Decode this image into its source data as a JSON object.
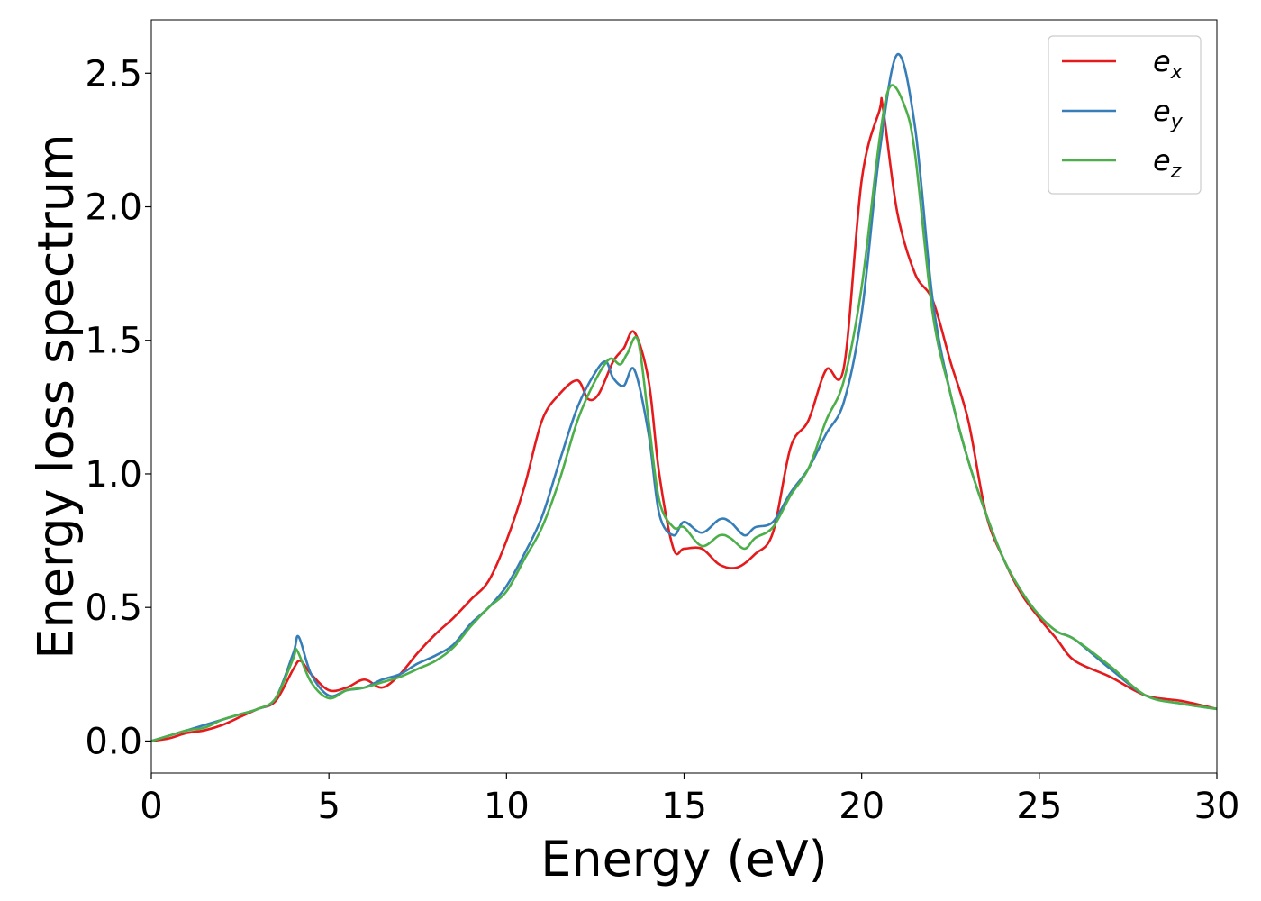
{
  "chart_data": {
    "type": "line",
    "xlabel": "Energy (eV)",
    "ylabel": "Energy loss spectrum",
    "xlim": [
      0,
      30
    ],
    "ylim": [
      -0.12,
      2.7
    ],
    "xticks": [
      0,
      5,
      10,
      15,
      20,
      25,
      30
    ],
    "xtick_labels": [
      "0",
      "5",
      "10",
      "15",
      "20",
      "25",
      "30"
    ],
    "yticks": [
      0.0,
      0.5,
      1.0,
      1.5,
      2.0,
      2.5
    ],
    "ytick_labels": [
      "0.0",
      "0.5",
      "1.0",
      "1.5",
      "2.0",
      "2.5"
    ],
    "grid": false,
    "legend_position": "top-right",
    "series": [
      {
        "name": "e_x",
        "label_base": "e",
        "label_sub": "x",
        "color": "#e41a1c",
        "x": [
          0,
          0.5,
          1,
          1.5,
          2,
          2.5,
          3,
          3.5,
          4,
          4.2,
          4.5,
          5,
          5.5,
          6,
          6.5,
          7,
          7.5,
          8,
          8.5,
          9,
          9.5,
          10,
          10.5,
          11,
          11.5,
          12,
          12.3,
          12.6,
          13,
          13.3,
          13.6,
          14,
          14.3,
          14.7,
          15,
          15.5,
          16,
          16.5,
          17,
          17.5,
          18,
          18.5,
          19,
          19.5,
          20,
          20.5,
          20.6,
          21,
          21.5,
          22,
          22.5,
          23,
          23.5,
          24,
          24.5,
          25,
          25.5,
          26,
          27,
          28,
          29,
          30
        ],
        "y": [
          0.0,
          0.01,
          0.03,
          0.04,
          0.06,
          0.09,
          0.12,
          0.15,
          0.27,
          0.3,
          0.25,
          0.19,
          0.2,
          0.23,
          0.2,
          0.25,
          0.33,
          0.4,
          0.46,
          0.53,
          0.6,
          0.75,
          0.95,
          1.2,
          1.3,
          1.35,
          1.28,
          1.3,
          1.42,
          1.47,
          1.53,
          1.35,
          1.0,
          0.72,
          0.72,
          0.72,
          0.66,
          0.65,
          0.7,
          0.78,
          1.1,
          1.2,
          1.39,
          1.4,
          2.1,
          2.36,
          2.37,
          1.98,
          1.75,
          1.65,
          1.42,
          1.2,
          0.85,
          0.68,
          0.55,
          0.46,
          0.38,
          0.3,
          0.24,
          0.17,
          0.15,
          0.12
        ]
      },
      {
        "name": "e_y",
        "label_base": "e",
        "label_sub": "y",
        "color": "#377eb8",
        "x": [
          0,
          0.5,
          1,
          1.5,
          2,
          2.5,
          3,
          3.5,
          4,
          4.15,
          4.5,
          5,
          5.5,
          6,
          6.5,
          7,
          7.5,
          8,
          8.5,
          9,
          9.5,
          10,
          10.5,
          11,
          11.5,
          12,
          12.5,
          12.8,
          13,
          13.3,
          13.6,
          14,
          14.3,
          14.7,
          15,
          15.5,
          16,
          16.3,
          16.7,
          17,
          17.5,
          18,
          18.5,
          19,
          19.5,
          20,
          20.5,
          21,
          21.5,
          22,
          22.5,
          23,
          23.5,
          24,
          24.5,
          25,
          25.5,
          26,
          27,
          28,
          29,
          30
        ],
        "y": [
          0.0,
          0.02,
          0.04,
          0.06,
          0.08,
          0.1,
          0.12,
          0.16,
          0.33,
          0.39,
          0.25,
          0.17,
          0.19,
          0.2,
          0.23,
          0.25,
          0.29,
          0.32,
          0.36,
          0.44,
          0.5,
          0.58,
          0.7,
          0.84,
          1.05,
          1.25,
          1.38,
          1.42,
          1.36,
          1.33,
          1.39,
          1.15,
          0.85,
          0.77,
          0.82,
          0.78,
          0.83,
          0.82,
          0.77,
          0.8,
          0.82,
          0.93,
          1.02,
          1.15,
          1.27,
          1.6,
          2.2,
          2.57,
          2.3,
          1.65,
          1.3,
          1.05,
          0.85,
          0.68,
          0.56,
          0.47,
          0.41,
          0.38,
          0.27,
          0.17,
          0.14,
          0.12
        ]
      },
      {
        "name": "e_z",
        "label_base": "e",
        "label_sub": "z",
        "color": "#4daf4a",
        "x": [
          0,
          0.5,
          1,
          1.5,
          2,
          2.5,
          3,
          3.5,
          4,
          4.1,
          4.5,
          5,
          5.5,
          6,
          6.5,
          7,
          7.5,
          8,
          8.5,
          9,
          9.5,
          10,
          10.5,
          11,
          11.5,
          12,
          12.5,
          12.9,
          13.2,
          13.4,
          13.7,
          14,
          14.3,
          14.7,
          15,
          15.5,
          16,
          16.3,
          16.7,
          17,
          17.5,
          18,
          18.5,
          19,
          19.5,
          20,
          20.5,
          20.8,
          21.2,
          21.5,
          22,
          22.5,
          23,
          23.5,
          24,
          24.5,
          25,
          25.5,
          26,
          27,
          28,
          29,
          30
        ],
        "y": [
          0.0,
          0.02,
          0.04,
          0.05,
          0.08,
          0.1,
          0.12,
          0.16,
          0.31,
          0.34,
          0.22,
          0.16,
          0.19,
          0.2,
          0.22,
          0.24,
          0.27,
          0.3,
          0.35,
          0.43,
          0.5,
          0.56,
          0.68,
          0.8,
          0.98,
          1.2,
          1.35,
          1.43,
          1.41,
          1.45,
          1.5,
          1.2,
          0.9,
          0.8,
          0.8,
          0.73,
          0.77,
          0.76,
          0.72,
          0.76,
          0.8,
          0.92,
          1.02,
          1.2,
          1.35,
          1.7,
          2.25,
          2.45,
          2.38,
          2.2,
          1.6,
          1.3,
          1.05,
          0.85,
          0.68,
          0.56,
          0.47,
          0.41,
          0.38,
          0.28,
          0.17,
          0.14,
          0.12
        ]
      }
    ]
  }
}
